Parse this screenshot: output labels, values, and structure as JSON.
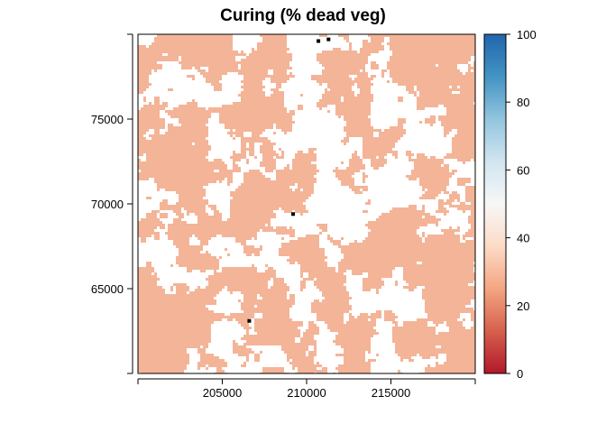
{
  "title": "Curing (% dead veg)",
  "map": {
    "fill_color": "#F4B498",
    "gap_color": "#FFFFFF",
    "marker_color": "#000000",
    "xlim": [
      200000,
      220000
    ],
    "ylim": [
      60000,
      80000
    ],
    "x_ticks": [
      {
        "value": 200000,
        "label": ""
      },
      {
        "value": 205000,
        "label": "205000"
      },
      {
        "value": 210000,
        "label": "210000"
      },
      {
        "value": 215000,
        "label": "215000"
      },
      {
        "value": 220000,
        "label": ""
      }
    ],
    "y_ticks": [
      {
        "value": 60000,
        "label": ""
      },
      {
        "value": 65000,
        "label": "65000"
      },
      {
        "value": 70000,
        "label": "70000"
      },
      {
        "value": 75000,
        "label": "75000"
      },
      {
        "value": 80000,
        "label": ""
      }
    ],
    "markers": [
      {
        "x": 210700,
        "y": 79600
      },
      {
        "x": 211300,
        "y": 79700
      },
      {
        "x": 209200,
        "y": 69400
      },
      {
        "x": 206600,
        "y": 63100
      }
    ]
  },
  "legend": {
    "range": [
      0,
      100
    ],
    "ticks": [
      "0",
      "20",
      "40",
      "60",
      "80",
      "100"
    ],
    "colors": [
      "#B2182B",
      "#D6604D",
      "#F4A582",
      "#FDDBC7",
      "#F7F7F7",
      "#D1E5F0",
      "#92C5DE",
      "#4393C3",
      "#2166AC"
    ]
  }
}
